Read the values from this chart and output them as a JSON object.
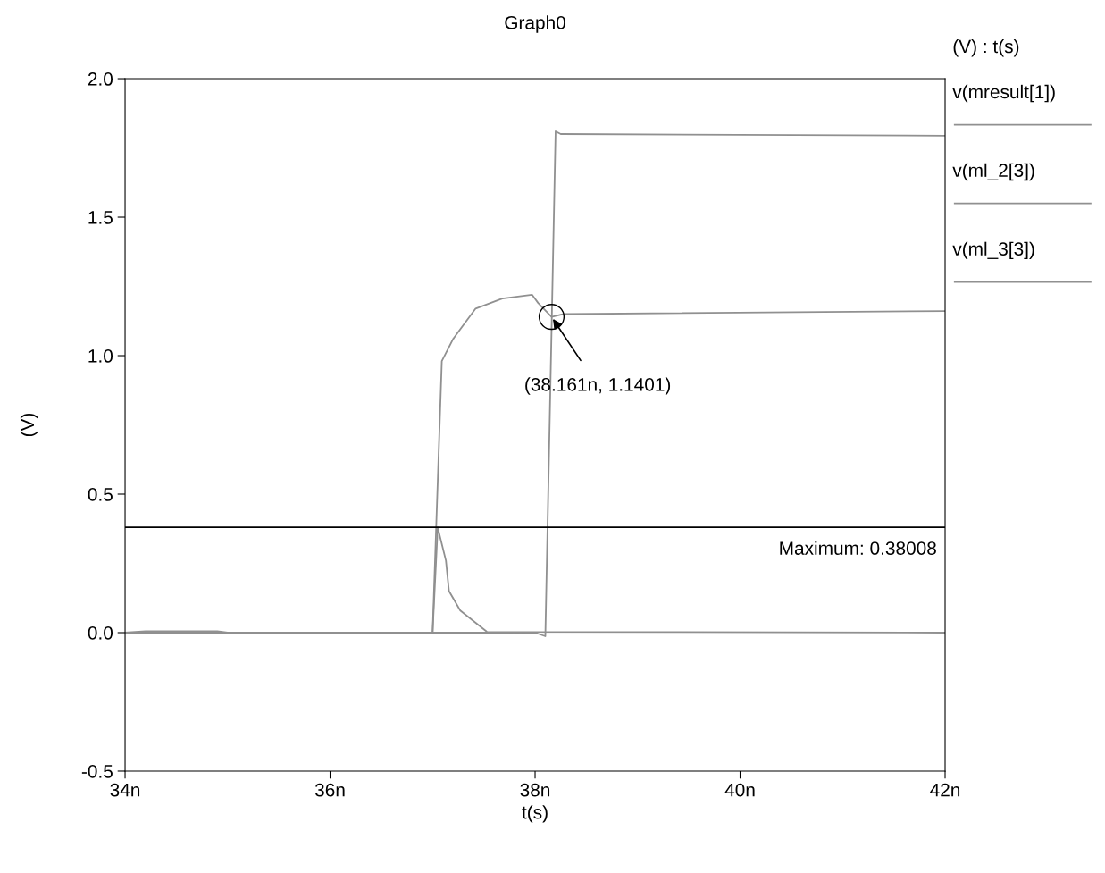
{
  "chart_data": {
    "type": "line",
    "title": "Graph0",
    "xlabel": "t(s)",
    "ylabel": "(V)",
    "legend_title": "(V) : t(s)",
    "legend": "right",
    "grid": false,
    "marker": "none",
    "line_style": "solid",
    "xlim": [
      34,
      42
    ],
    "ylim": [
      -0.5,
      2.0
    ],
    "xticks": [
      {
        "value": 34,
        "label": "34n"
      },
      {
        "value": 36,
        "label": "36n"
      },
      {
        "value": 38,
        "label": "38n"
      },
      {
        "value": 40,
        "label": "40n"
      },
      {
        "value": 42,
        "label": "42n"
      }
    ],
    "yticks": [
      {
        "value": -0.5,
        "label": "-0.5"
      },
      {
        "value": 0,
        "label": "0.0"
      },
      {
        "value": 0.5,
        "label": "0.5"
      },
      {
        "value": 1.0,
        "label": "1.0"
      },
      {
        "value": 1.5,
        "label": "1.5"
      },
      {
        "value": 2.0,
        "label": "2.0"
      }
    ],
    "series": [
      {
        "name": "v(mresult[1])",
        "color": "#909090",
        "x": [
          34,
          38.0,
          38.1,
          38.2,
          38.25,
          42
        ],
        "values": [
          0,
          0,
          -0.013,
          1.81,
          1.8,
          1.794
        ]
      },
      {
        "name": "v(ml_2[3])",
        "color": "#909090",
        "x": [
          34,
          37.0,
          37.09,
          37.2,
          37.42,
          37.68,
          37.97,
          38.03,
          38.161,
          38.27,
          42
        ],
        "values": [
          0,
          0,
          0.98,
          1.06,
          1.17,
          1.206,
          1.22,
          1.19,
          1.1401,
          1.15,
          1.161
        ]
      },
      {
        "name": "v(ml_3[3])",
        "color": "#909090",
        "x": [
          34,
          34.2,
          34.9,
          35.0,
          37.0,
          37.05,
          37.13,
          37.16,
          37.27,
          37.53,
          42
        ],
        "values": [
          0,
          0.005,
          0.005,
          0,
          0,
          0.38008,
          0.26,
          0.15,
          0.08,
          0.003,
          0
        ]
      }
    ],
    "ref_lines": [
      {
        "axis": "y",
        "value": 0.38008,
        "label": "Maximum: 0.38008",
        "color": "#000000"
      }
    ],
    "annotations": [
      {
        "text": "(38.161n, 1.1401)",
        "x": 38.161,
        "y": 1.1401
      }
    ]
  }
}
